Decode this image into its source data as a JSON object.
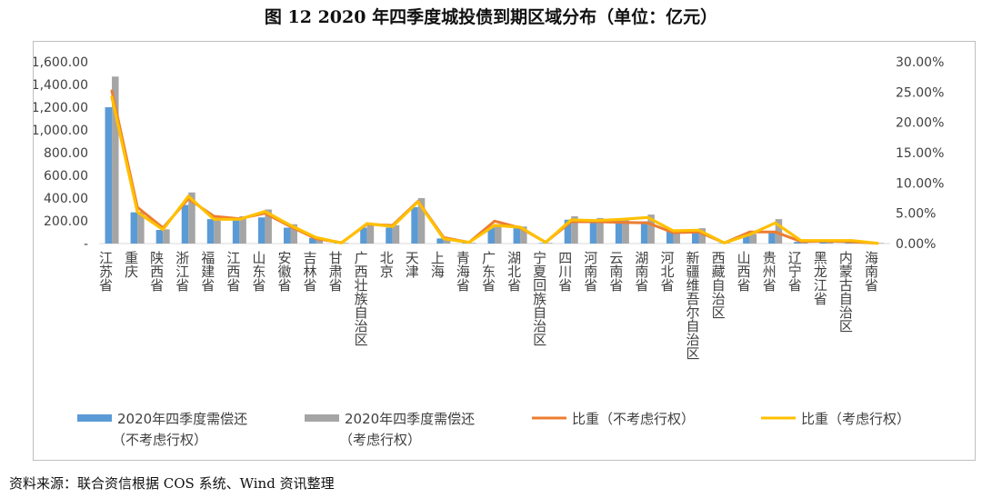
{
  "figure_title": "图 12   2020 年四季度城投债到期区域分布（单位：亿元）",
  "source_note": "资料来源：联合资信根据 COS 系统、Wind 资讯整理",
  "colors": {
    "bar_a": "#5b9bd5",
    "bar_b": "#a5a5a5",
    "line_a": "#ed7d31",
    "line_b": "#ffc000"
  },
  "chart_data": {
    "type": "bar",
    "title": "",
    "categories": [
      "江苏省",
      "重庆",
      "陕西省",
      "浙江省",
      "福建省",
      "江西省",
      "山东省",
      "安徽省",
      "吉林省",
      "甘肃省",
      "广西壮族自治区",
      "北京",
      "天津",
      "上海",
      "青海省",
      "广东省",
      "湖北省",
      "宁夏回族自治区",
      "四川省",
      "河南省",
      "云南省",
      "湖南省",
      "河北省",
      "新疆维吾尔自治区",
      "西藏自治区",
      "山西省",
      "贵州省",
      "辽宁省",
      "黑龙江省",
      "内蒙古自治区",
      "海南省"
    ],
    "y_left": {
      "ylim": [
        0,
        1600
      ],
      "ticks": [
        "-",
        "200.00",
        "400.00",
        "600.00",
        "800.00",
        "1,000.00",
        "1,200.00",
        "1,400.00",
        "1,600.00"
      ]
    },
    "y_right": {
      "ylim": [
        0,
        30
      ],
      "ticks": [
        "0.00%",
        "5.00%",
        "10.00%",
        "15.00%",
        "20.00%",
        "25.00%",
        "30.00%"
      ]
    },
    "grid": false,
    "legend_position": "bottom",
    "series": [
      {
        "name": "2020年四季度需偿还（不考虑行权）",
        "legend_lines": [
          "2020年四季度需偿还",
          "（不考虑行权）"
        ],
        "kind": "bar",
        "axis": "left",
        "values": [
          1200,
          275,
          120,
          340,
          215,
          210,
          230,
          140,
          50,
          5,
          140,
          140,
          320,
          45,
          5,
          140,
          135,
          5,
          210,
          210,
          200,
          195,
          110,
          115,
          3,
          75,
          110,
          15,
          20,
          12,
          4
        ]
      },
      {
        "name": "2020年四季度需偿还（考虑行权）",
        "legend_lines": [
          "2020年四季度需偿还",
          "（考虑行权）"
        ],
        "kind": "bar",
        "axis": "left",
        "values": [
          1470,
          280,
          125,
          450,
          225,
          240,
          300,
          170,
          55,
          6,
          180,
          160,
          400,
          50,
          6,
          170,
          150,
          6,
          240,
          225,
          225,
          255,
          120,
          135,
          4,
          85,
          215,
          18,
          25,
          15,
          5
        ]
      },
      {
        "name": "比重（不考虑行权）",
        "kind": "line",
        "axis": "right",
        "values": [
          25.2,
          6.0,
          2.6,
          7.4,
          4.5,
          4.1,
          5.0,
          2.8,
          0.8,
          0.15,
          3.2,
          3.0,
          7.0,
          1.0,
          0.2,
          3.7,
          2.6,
          0.2,
          3.6,
          3.6,
          3.5,
          3.4,
          1.8,
          1.9,
          0.1,
          1.9,
          1.9,
          0.35,
          0.4,
          0.3,
          0.05
        ]
      },
      {
        "name": "比重（考虑行权）",
        "kind": "line",
        "axis": "right",
        "values": [
          24.2,
          5.2,
          2.3,
          7.8,
          4.0,
          4.0,
          5.3,
          3.0,
          1.0,
          0.1,
          3.3,
          2.8,
          6.9,
          0.8,
          0.2,
          3.0,
          2.7,
          0.2,
          3.9,
          3.8,
          4.0,
          4.3,
          2.1,
          2.2,
          0.1,
          1.5,
          3.4,
          0.5,
          0.5,
          0.5,
          0.05
        ]
      }
    ]
  }
}
